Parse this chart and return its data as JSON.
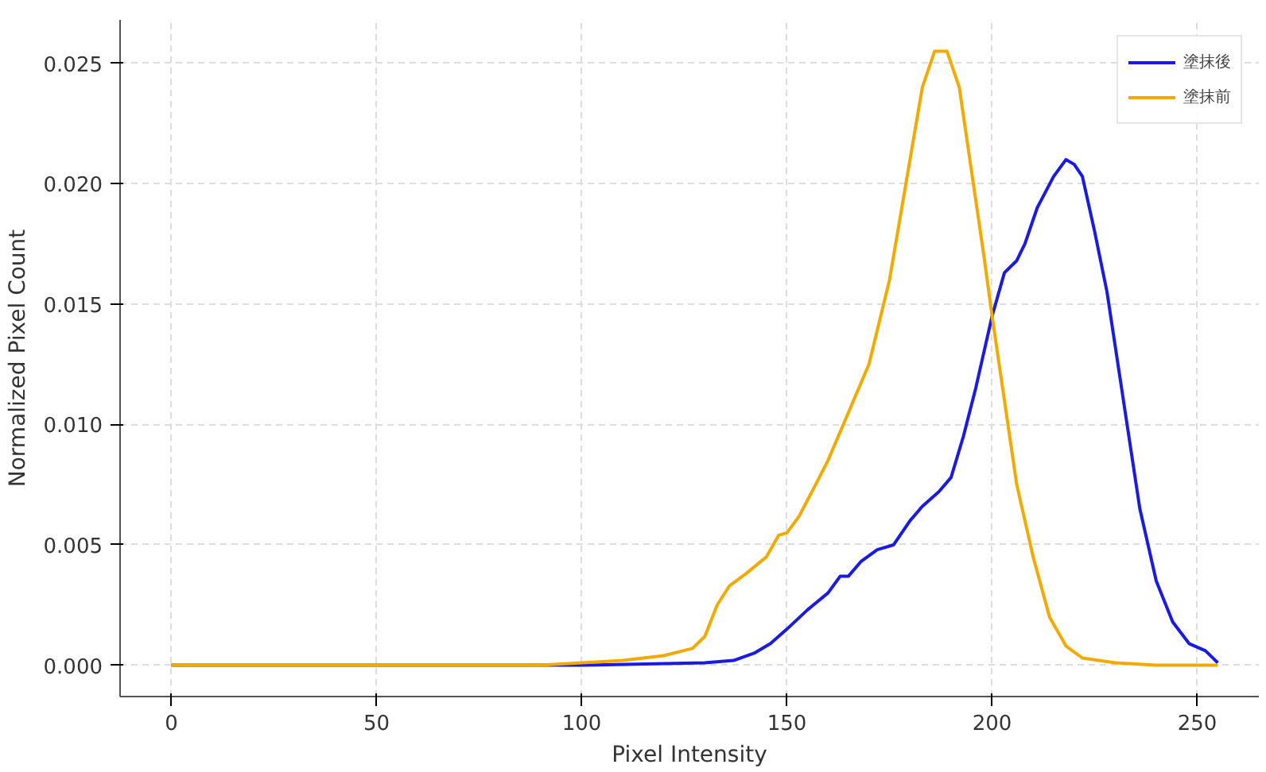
{
  "chart_data": {
    "type": "line",
    "xlabel": "Pixel Intensity",
    "ylabel": "Normalized Pixel Count",
    "xlim": [
      -12.5,
      265
    ],
    "ylim": [
      -0.0013,
      0.0268
    ],
    "xticks": [
      0,
      50,
      100,
      150,
      200,
      250
    ],
    "yticks": [
      {
        "value": 0,
        "label": "0.000"
      },
      {
        "value": 0.005,
        "label": "0.005"
      },
      {
        "value": 0.01,
        "label": "0.010"
      },
      {
        "value": 0.015,
        "label": "0.015"
      },
      {
        "value": 0.02,
        "label": "0.020"
      },
      {
        "value": 0.025,
        "label": "0.025"
      }
    ],
    "grid": true,
    "legend": "top right",
    "line_style": "solid",
    "series": [
      {
        "name": "塗抹後",
        "color": "#1a1ae6",
        "x": [
          0,
          50,
          100,
          130,
          137,
          142,
          146,
          150,
          155,
          160,
          163,
          165,
          168,
          172,
          176,
          180,
          183,
          187,
          190,
          193,
          196,
          200,
          203,
          206,
          208,
          211,
          215,
          218,
          220,
          222,
          225,
          228,
          232,
          236,
          240,
          244,
          248,
          252,
          255
        ],
        "values": [
          0,
          0,
          0,
          0.0001,
          0.0002,
          0.0005,
          0.0009,
          0.0015,
          0.0023,
          0.003,
          0.0037,
          0.0037,
          0.0043,
          0.0048,
          0.005,
          0.006,
          0.0066,
          0.0072,
          0.0078,
          0.0095,
          0.0115,
          0.0145,
          0.0163,
          0.0168,
          0.0175,
          0.019,
          0.0203,
          0.021,
          0.0208,
          0.0203,
          0.018,
          0.0155,
          0.011,
          0.0065,
          0.0035,
          0.0018,
          0.0009,
          0.0006,
          0.0001
        ]
      },
      {
        "name": "塗抹前",
        "color": "#f2aa00",
        "x": [
          0,
          50,
          90,
          100,
          110,
          120,
          127,
          130,
          133,
          136,
          140,
          145,
          148,
          150,
          153,
          157,
          160,
          165,
          170,
          175,
          180,
          183,
          186,
          189,
          192,
          195,
          198,
          200,
          203,
          206,
          210,
          214,
          218,
          222,
          230,
          240,
          255
        ],
        "values": [
          0,
          0,
          0,
          0.0001,
          0.0002,
          0.0004,
          0.0007,
          0.0012,
          0.0025,
          0.0033,
          0.0038,
          0.0045,
          0.0054,
          0.0055,
          0.0062,
          0.0075,
          0.0085,
          0.0105,
          0.0125,
          0.016,
          0.021,
          0.024,
          0.0255,
          0.0255,
          0.024,
          0.0205,
          0.017,
          0.0145,
          0.011,
          0.0075,
          0.0045,
          0.002,
          0.0008,
          0.0003,
          0.0001,
          0,
          0
        ]
      }
    ]
  }
}
